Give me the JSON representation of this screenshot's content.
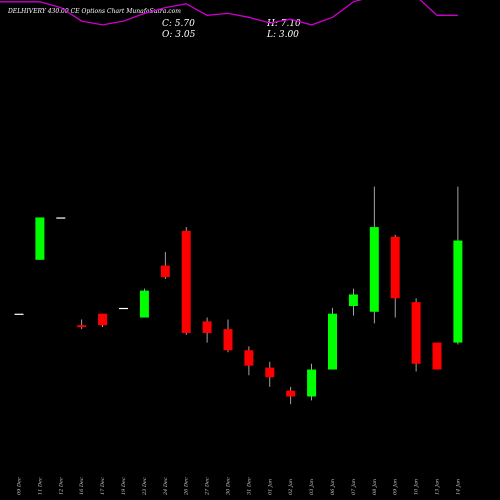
{
  "header": {
    "title": "DELHIVERY 430.00 CE Options Chart MunafaSutra.com",
    "c": "C: 5.70",
    "h": "H: 7.10",
    "o": "O: 3.05",
    "l": "L: 3.00"
  },
  "colors": {
    "up": "#00ff00",
    "down": "#ff0000",
    "neutral": "#ffffff",
    "upper_band": "#00ff00",
    "lower_band": "#cc00cc",
    "background": "#000000"
  },
  "chart_data": {
    "type": "candlestick",
    "x": [
      "09 Dec",
      "11 Dec",
      "12 Dec",
      "16 Dec",
      "17 Dec",
      "19 Dec",
      "23 Dec",
      "24 Dec",
      "26 Dec",
      "27 Dec",
      "30 Dec",
      "31 Dec",
      "01 Jan",
      "02 Jan",
      "03 Jan",
      "06 Jan",
      "07 Jan",
      "08 Jan",
      "09 Jan",
      "10 Jan",
      "13 Jan",
      "14 Jan"
    ],
    "candles": [
      {
        "o": 3.8,
        "h": 3.8,
        "l": 3.8,
        "c": 3.8
      },
      {
        "o": 5.2,
        "h": 6.3,
        "l": 5.2,
        "c": 6.3
      },
      {
        "o": 6.3,
        "h": 6.3,
        "l": 6.3,
        "c": 6.3
      },
      {
        "o": 3.5,
        "h": 3.65,
        "l": 3.4,
        "c": 3.45
      },
      {
        "o": 3.8,
        "h": 3.8,
        "l": 3.45,
        "c": 3.5
      },
      {
        "o": 3.95,
        "h": 3.95,
        "l": 3.95,
        "c": 3.95
      },
      {
        "o": 3.7,
        "h": 4.45,
        "l": 3.7,
        "c": 4.4
      },
      {
        "o": 5.05,
        "h": 5.4,
        "l": 4.7,
        "c": 4.75
      },
      {
        "o": 5.95,
        "h": 6.05,
        "l": 3.25,
        "c": 3.3
      },
      {
        "o": 3.6,
        "h": 3.7,
        "l": 3.05,
        "c": 3.3
      },
      {
        "o": 3.4,
        "h": 3.65,
        "l": 2.8,
        "c": 2.85
      },
      {
        "o": 2.85,
        "h": 2.95,
        "l": 2.2,
        "c": 2.45
      },
      {
        "o": 2.4,
        "h": 2.55,
        "l": 1.9,
        "c": 2.15
      },
      {
        "o": 1.8,
        "h": 1.9,
        "l": 1.45,
        "c": 1.65
      },
      {
        "o": 1.65,
        "h": 2.5,
        "l": 1.55,
        "c": 2.35
      },
      {
        "o": 2.35,
        "h": 3.95,
        "l": 2.35,
        "c": 3.8
      },
      {
        "o": 4.0,
        "h": 4.45,
        "l": 3.75,
        "c": 4.3
      },
      {
        "o": 3.85,
        "h": 7.1,
        "l": 3.55,
        "c": 6.05
      },
      {
        "o": 5.8,
        "h": 5.85,
        "l": 3.7,
        "c": 4.2
      },
      {
        "o": 4.1,
        "h": 4.2,
        "l": 2.3,
        "c": 2.5
      },
      {
        "o": 3.05,
        "h": 3.05,
        "l": 2.35,
        "c": 2.35
      },
      {
        "o": 3.05,
        "h": 7.1,
        "l": 3.0,
        "c": 5.7
      }
    ],
    "upper_band": [
      13.7,
      13.7,
      14.55,
      14.55,
      13.6,
      13.55,
      13.8,
      13.9,
      13.95,
      13.7,
      13.7,
      13.6,
      13.5,
      13.45,
      13.35,
      13.45,
      13.8,
      13.85,
      14.55,
      14.1,
      13.4,
      13.05
    ],
    "lower_band": [
      11.9,
      11.9,
      11.75,
      11.4,
      11.3,
      11.4,
      11.6,
      11.75,
      11.85,
      11.55,
      11.6,
      11.5,
      11.35,
      11.45,
      11.3,
      11.5,
      11.9,
      12.05,
      12.35,
      12.05,
      11.55,
      11.55
    ]
  }
}
